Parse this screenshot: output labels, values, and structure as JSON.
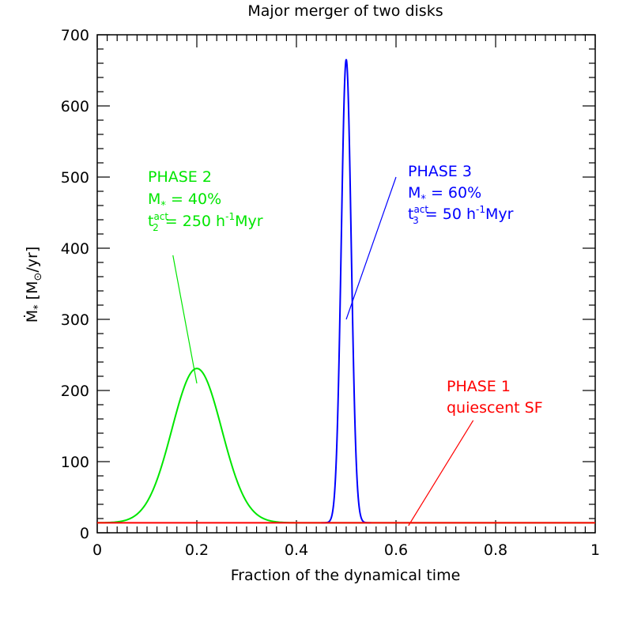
{
  "chart_data": {
    "type": "line",
    "title": "Major merger of two disks",
    "xlabel": "Fraction of the dynamical time",
    "ylabel": {
      "main": "Ṁ",
      "sub": "*",
      "unit_open": " [M",
      "sun": "⊙",
      "unit_close": "/yr]"
    },
    "xlim": [
      0,
      1
    ],
    "ylim": [
      0,
      700
    ],
    "x_ticks": [
      "0",
      "0.2",
      "0.4",
      "0.6",
      "0.8",
      "1"
    ],
    "y_ticks": [
      "0",
      "100",
      "200",
      "300",
      "400",
      "500",
      "600",
      "700"
    ],
    "colors": {
      "phase1": "#ff0000",
      "phase2": "#00e600",
      "phase3": "#0000ff"
    },
    "series": [
      {
        "name": "PHASE 2",
        "key": "phase2",
        "baseline": 14,
        "peak_x": 0.2,
        "peak_y": 231,
        "sigma": 0.05,
        "x_range": [
          0,
          1
        ]
      },
      {
        "name": "PHASE 3",
        "key": "phase3",
        "baseline": 14,
        "peak_x": 0.5,
        "peak_y": 665,
        "sigma": 0.01,
        "x_range": [
          0.45,
          0.55
        ]
      },
      {
        "name": "PHASE 1",
        "key": "phase1",
        "baseline": 14,
        "x_range": [
          0,
          1
        ]
      }
    ],
    "annotations": [
      {
        "key": "phase2",
        "lines": [
          {
            "t": "PHASE 2"
          },
          {
            "t": "M",
            "sub": "*",
            "rest": " = 40%"
          },
          {
            "t": "t",
            "sup": "act",
            "sub": "2",
            "rest": " = 250 h",
            "rsup": "-1",
            "rest2": "Myr"
          }
        ],
        "pointer_from": [
          0.152,
          390
        ],
        "pointer_to": [
          0.2,
          210
        ]
      },
      {
        "key": "phase3",
        "lines": [
          {
            "t": "PHASE 3"
          },
          {
            "t": "M",
            "sub": "*",
            "rest": " = 60%"
          },
          {
            "t": "t",
            "sup": "act",
            "sub": "3",
            "rest": " = 50 h",
            "rsup": "-1",
            "rest2": "Myr"
          }
        ],
        "pointer_from": [
          0.6,
          500
        ],
        "pointer_to": [
          0.5,
          300
        ]
      },
      {
        "key": "phase1",
        "lines": [
          {
            "t": "PHASE 1"
          },
          {
            "t": "quiescent SF"
          }
        ],
        "pointer_from": [
          0.755,
          158
        ],
        "pointer_to": [
          0.625,
          10
        ]
      }
    ]
  }
}
